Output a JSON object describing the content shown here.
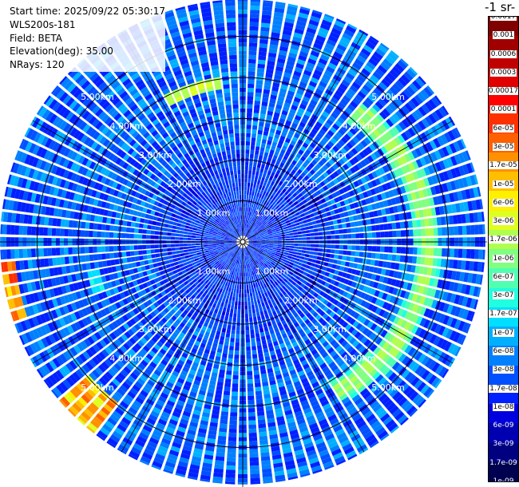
{
  "info": {
    "start_time": "Start time: 2025/09/22 05:30:17",
    "instrument": "WLS200s-181",
    "field": "Field: BETA",
    "elevation": "Elevation(deg): 35.00",
    "nrays": "NRays: 120"
  },
  "colorbar": {
    "title": "-1 sr-",
    "colors": [
      "#800000",
      "#a00000",
      "#c00000",
      "#e00000",
      "#ff0000",
      "#ff3000",
      "#ff6000",
      "#ff9000",
      "#ffbf00",
      "#ffef00",
      "#dfff20",
      "#b0ff50",
      "#80ff80",
      "#50ffb0",
      "#20ffdf",
      "#00dfff",
      "#00b0ff",
      "#0080ff",
      "#0050ff",
      "#0020ff",
      "#0000df",
      "#0000b0",
      "#000080",
      "#000050"
    ],
    "labels": [
      "0.0017",
      "0.001",
      "0.0006",
      "0.0003",
      "0.00017",
      "0.0001",
      "6e-05",
      "3e-05",
      "1.7e-05",
      "1e-05",
      "6e-06",
      "3e-06",
      "1.7e-06",
      "1e-06",
      "6e-07",
      "3e-07",
      "1.7e-07",
      "1e-07",
      "6e-08",
      "3e-08",
      "1.7e-08",
      "1e-08",
      "6e-09",
      "3e-09",
      "1.7e-09",
      "1e-09"
    ]
  },
  "chart_data": {
    "type": "heatmap",
    "projection": "polar-ppi",
    "nrays": 120,
    "range_rings_km": [
      1,
      2,
      3,
      4,
      5
    ],
    "range_labels": [
      "1.00km",
      "2.00km",
      "3.00km",
      "4.00km",
      "5.00km"
    ],
    "max_range_km": 5.9,
    "grid": true,
    "features": [
      {
        "name": "strong-ring-east",
        "range_km": [
          4.1,
          4.4
        ],
        "azimuth_deg": [
          50,
          135
        ],
        "beta": "1.7e-06 to 1e-05"
      },
      {
        "name": "patch-south-east",
        "range_km": [
          4.1,
          4.7
        ],
        "azimuth_deg": [
          125,
          140
        ],
        "beta": "1e-05"
      },
      {
        "name": "patch-north",
        "range_km": [
          3.8,
          4.2
        ],
        "azimuth_deg": [
          -25,
          -10
        ],
        "beta": "1e-05"
      },
      {
        "name": "patch-west-edge",
        "range_km": [
          5.1,
          5.9
        ],
        "azimuth_deg": [
          -110,
          -100
        ],
        "beta": "3e-05 to 0.00017"
      },
      {
        "name": "patch-south-west",
        "range_km": [
          4.7,
          5.9
        ],
        "azimuth_deg": [
          -145,
          -135
        ],
        "beta": "1e-05 to 0.00017"
      }
    ],
    "background_beta": "3e-08 to 3e-07"
  }
}
